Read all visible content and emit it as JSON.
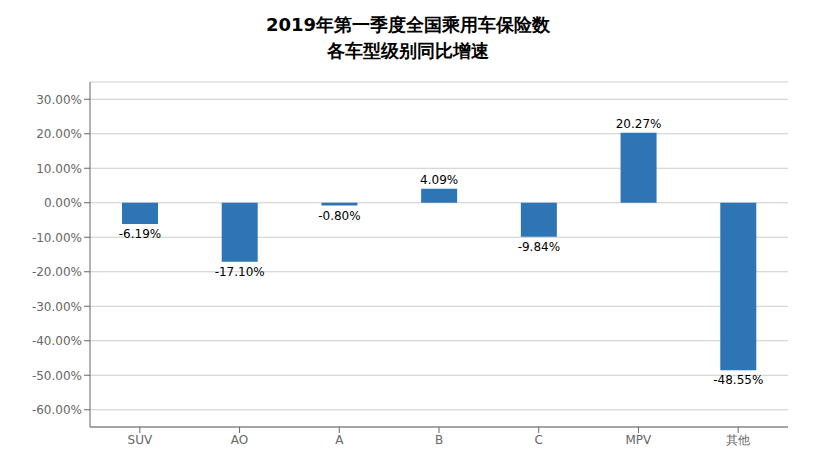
{
  "chart_data": {
    "type": "bar",
    "title": "2019年第一季度全国乘用车保险数\n各车型级别同比增速",
    "categories": [
      "SUV",
      "AO",
      "A",
      "B",
      "C",
      "MPV",
      "其他"
    ],
    "values": [
      -6.19,
      -17.1,
      -0.8,
      4.09,
      -9.84,
      20.27,
      -48.55
    ],
    "value_labels": [
      "-6.19%",
      "-17.10%",
      "-0.80%",
      "4.09%",
      "-9.84%",
      "20.27%",
      "-48.55%"
    ],
    "data_labels": true,
    "color": "#2E75B6",
    "ylim": [
      -65,
      35
    ],
    "yticks": [
      {
        "value": -60,
        "label": "-60.00%"
      },
      {
        "value": -50,
        "label": "-50.00%"
      },
      {
        "value": -40,
        "label": "-40.00%"
      },
      {
        "value": -30,
        "label": "-30.00%"
      },
      {
        "value": -20,
        "label": "-20.00%"
      },
      {
        "value": -10,
        "label": "-10.00%"
      },
      {
        "value": 0,
        "label": "0.00%"
      },
      {
        "value": 10,
        "label": "10.00%"
      },
      {
        "value": 20,
        "label": "20.00%"
      },
      {
        "value": 30,
        "label": "30.00%"
      }
    ],
    "grid": true
  }
}
